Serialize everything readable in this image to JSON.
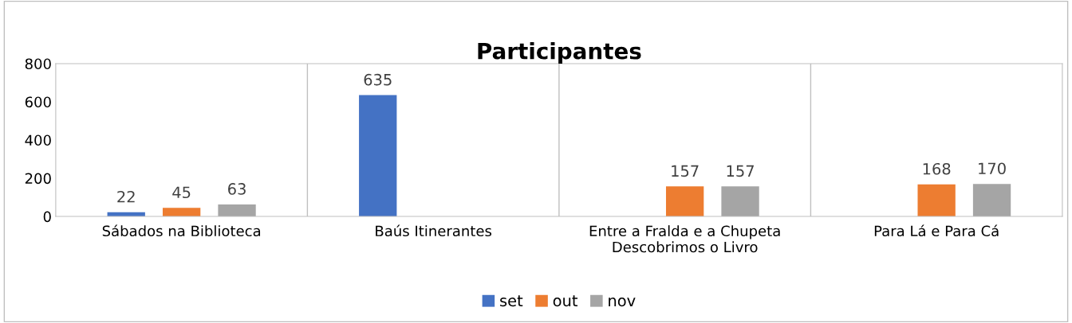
{
  "chart_data": {
    "type": "bar",
    "title": "Participantes",
    "categories": [
      "Sábados na Biblioteca",
      "Baús Itinerantes",
      "Entre a Fralda e a Chupeta\nDescobrimos o Livro",
      "Para Lá e Para Cá"
    ],
    "series": [
      {
        "name": "set",
        "color": "#4472c4",
        "values": [
          22,
          635,
          null,
          null
        ]
      },
      {
        "name": "out",
        "color": "#ed7d31",
        "values": [
          45,
          null,
          157,
          168
        ]
      },
      {
        "name": "nov",
        "color": "#a5a5a5",
        "values": [
          63,
          null,
          157,
          170
        ]
      }
    ],
    "ylim": [
      0,
      800
    ],
    "yticks": [
      0,
      200,
      400,
      600,
      800
    ],
    "grid": "x",
    "legend": "bottom",
    "data_labels": true
  }
}
